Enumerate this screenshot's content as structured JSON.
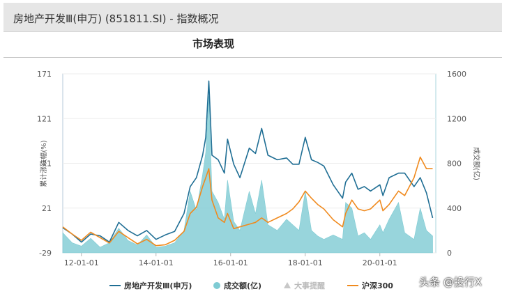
{
  "header": {
    "title": "房地产开发Ⅲ(申万) (851811.SI) - 指数概况"
  },
  "section": {
    "title": "市场表现"
  },
  "watermark": "头条 @投行X",
  "colors": {
    "index": "#1f6e94",
    "volume": "#7ecbd3",
    "events": "#c8c8c8",
    "hs300": "#f08a1e"
  },
  "chart_data": {
    "type": "line",
    "ylabel": "累计涨跌幅(%)",
    "y2label": "成交额(亿)",
    "ylim": [
      -29,
      171
    ],
    "yticks": [
      -29,
      21,
      71,
      121,
      171
    ],
    "y2lim": [
      0,
      1600
    ],
    "y2ticks": [
      0,
      400,
      800,
      1200,
      1600
    ],
    "xlim": [
      "2011-07-01",
      "2021-07-01"
    ],
    "xticks": [
      "12-01-01",
      "14-01-01",
      "16-01-01",
      "18-01-01",
      "20-01-01"
    ],
    "legend_position": "bottom",
    "series": [
      {
        "name": "房地产开发Ⅲ(申万)",
        "kind": "line",
        "axis": "left",
        "x": [
          "2011-07",
          "2011-10",
          "2012-01",
          "2012-04",
          "2012-07",
          "2012-10",
          "2013-01",
          "2013-04",
          "2013-07",
          "2013-10",
          "2014-01",
          "2014-04",
          "2014-07",
          "2014-10",
          "2014-12",
          "2015-02",
          "2015-04",
          "2015-05",
          "2015-06",
          "2015-07",
          "2015-09",
          "2015-11",
          "2015-12",
          "2016-02",
          "2016-04",
          "2016-07",
          "2016-09",
          "2016-11",
          "2017-01",
          "2017-04",
          "2017-07",
          "2017-09",
          "2017-11",
          "2018-01",
          "2018-03",
          "2018-05",
          "2018-07",
          "2018-10",
          "2019-01",
          "2019-02",
          "2019-04",
          "2019-06",
          "2019-08",
          "2019-10",
          "2020-01",
          "2020-02",
          "2020-04",
          "2020-07",
          "2020-09",
          "2020-12",
          "2021-02",
          "2021-04",
          "2021-06"
        ],
        "y": [
          -1,
          -8,
          -17,
          -8,
          -10,
          -17,
          5,
          -4,
          -10,
          -4,
          -14,
          -9,
          -5,
          15,
          45,
          55,
          80,
          100,
          163,
          80,
          75,
          60,
          98,
          70,
          55,
          88,
          82,
          110,
          80,
          75,
          77,
          70,
          70,
          100,
          75,
          72,
          68,
          47,
          32,
          50,
          60,
          42,
          45,
          40,
          47,
          35,
          55,
          60,
          60,
          45,
          55,
          38,
          10
        ]
      },
      {
        "name": "成交额(亿)",
        "kind": "area",
        "axis": "right",
        "x": [
          "2011-07",
          "2011-10",
          "2012-01",
          "2012-04",
          "2012-07",
          "2012-10",
          "2013-01",
          "2013-04",
          "2013-07",
          "2013-10",
          "2014-01",
          "2014-04",
          "2014-07",
          "2014-10",
          "2014-12",
          "2015-02",
          "2015-04",
          "2015-05",
          "2015-06",
          "2015-07",
          "2015-09",
          "2015-11",
          "2015-12",
          "2016-02",
          "2016-04",
          "2016-07",
          "2016-09",
          "2016-11",
          "2017-01",
          "2017-04",
          "2017-07",
          "2017-09",
          "2017-11",
          "2018-01",
          "2018-03",
          "2018-05",
          "2018-07",
          "2018-10",
          "2019-01",
          "2019-02",
          "2019-04",
          "2019-06",
          "2019-08",
          "2019-10",
          "2020-01",
          "2020-02",
          "2020-04",
          "2020-07",
          "2020-09",
          "2020-12",
          "2021-02",
          "2021-04",
          "2021-06"
        ],
        "y": [
          180,
          90,
          60,
          130,
          50,
          90,
          220,
          110,
          70,
          160,
          50,
          60,
          90,
          200,
          550,
          380,
          700,
          900,
          1400,
          550,
          450,
          300,
          650,
          280,
          200,
          550,
          350,
          650,
          250,
          200,
          300,
          250,
          200,
          550,
          200,
          150,
          120,
          160,
          120,
          450,
          400,
          150,
          180,
          120,
          250,
          180,
          300,
          450,
          180,
          120,
          400,
          200,
          150
        ]
      },
      {
        "name": "大事提醒",
        "kind": "marker"
      },
      {
        "name": "沪深300",
        "kind": "line",
        "axis": "left",
        "x": [
          "2011-07",
          "2011-10",
          "2012-01",
          "2012-04",
          "2012-07",
          "2012-10",
          "2013-01",
          "2013-04",
          "2013-07",
          "2013-10",
          "2014-01",
          "2014-04",
          "2014-07",
          "2014-10",
          "2014-12",
          "2015-02",
          "2015-04",
          "2015-05",
          "2015-06",
          "2015-07",
          "2015-09",
          "2015-11",
          "2015-12",
          "2016-02",
          "2016-04",
          "2016-07",
          "2016-09",
          "2016-11",
          "2017-01",
          "2017-04",
          "2017-07",
          "2017-09",
          "2017-11",
          "2018-01",
          "2018-03",
          "2018-05",
          "2018-07",
          "2018-10",
          "2019-01",
          "2019-02",
          "2019-04",
          "2019-06",
          "2019-08",
          "2019-10",
          "2020-01",
          "2020-02",
          "2020-04",
          "2020-07",
          "2020-09",
          "2020-12",
          "2021-02",
          "2021-04",
          "2021-06"
        ],
        "y": [
          0,
          -8,
          -15,
          -6,
          -12,
          -18,
          -5,
          -12,
          -19,
          -14,
          -21,
          -20,
          -15,
          -5,
          15,
          22,
          45,
          55,
          65,
          30,
          10,
          5,
          15,
          -2,
          0,
          3,
          5,
          10,
          5,
          10,
          15,
          20,
          28,
          40,
          32,
          25,
          20,
          8,
          0,
          15,
          30,
          20,
          18,
          20,
          30,
          18,
          25,
          40,
          35,
          55,
          78,
          65,
          65
        ]
      }
    ]
  }
}
